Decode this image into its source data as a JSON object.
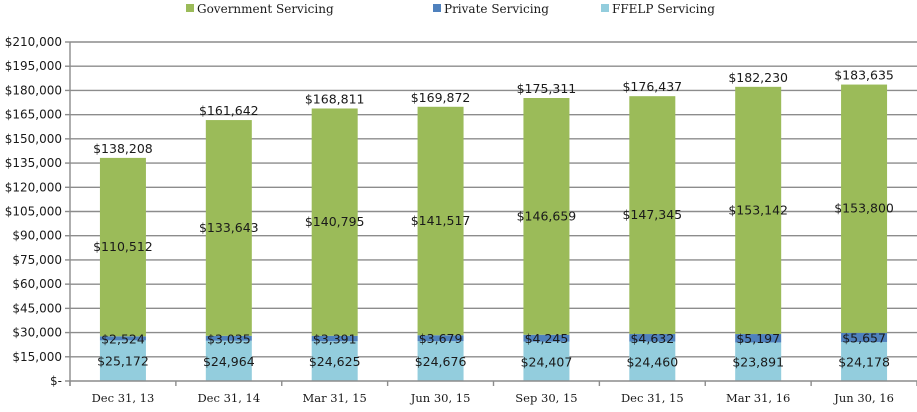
{
  "chart_data": {
    "type": "bar",
    "stacked": true,
    "title": "",
    "xlabel": "",
    "ylabel": "",
    "categories": [
      "Dec 31, 13",
      "Dec 31, 14",
      "Mar 31, 15",
      "Jun 30, 15",
      "Sep 30, 15",
      "Dec 31, 15",
      "Mar 31, 16",
      "Jun 30, 16"
    ],
    "series": [
      {
        "name": "FFELP Servicing",
        "color": "#93cddd",
        "values": [
          25172,
          24964,
          24625,
          24676,
          24407,
          24460,
          23891,
          24178
        ],
        "labels": [
          "$25,172",
          "$24,964",
          "$24,625",
          "$24,676",
          "$24,407",
          "$24,460",
          "$23,891",
          "$24,178"
        ]
      },
      {
        "name": "Private Servicing",
        "color": "#4f81bd",
        "values": [
          2524,
          3035,
          3391,
          3679,
          4245,
          4632,
          5197,
          5657
        ],
        "labels": [
          "$2,524",
          "$3,035",
          "$3,391",
          "$3,679",
          "$4,245",
          "$4,632",
          "$5,197",
          "$5,657"
        ]
      },
      {
        "name": "Government Servicing",
        "color": "#9bbb59",
        "values": [
          110512,
          133643,
          140795,
          141517,
          146659,
          147345,
          153142,
          153800
        ],
        "labels": [
          "$110,512",
          "$133,643",
          "$140,795",
          "$141,517",
          "$146,659",
          "$147,345",
          "$153,142",
          "$153,800"
        ]
      }
    ],
    "totals": [
      138208,
      161642,
      168811,
      169872,
      175311,
      176437,
      182230,
      183635
    ],
    "total_labels": [
      "$138,208",
      "$161,642",
      "$168,811",
      "$169,872",
      "$175,311",
      "$176,437",
      "$182,230",
      "$183,635"
    ],
    "legend": {
      "position": "top",
      "entries": [
        {
          "label": "Government Servicing",
          "color": "#9bbb59"
        },
        {
          "label": "Private Servicing",
          "color": "#4f81bd"
        },
        {
          "label": "FFELP Servicing",
          "color": "#93cddd"
        }
      ]
    },
    "ylim": [
      0,
      210000
    ],
    "ytick_step": 15000,
    "ytick_labels": [
      "$-",
      "$15,000",
      "$30,000",
      "$45,000",
      "$60,000",
      "$75,000",
      "$90,000",
      "$105,000",
      "$120,000",
      "$135,000",
      "$150,000",
      "$165,000",
      "$180,000",
      "$195,000",
      "$210,000"
    ],
    "grid": true,
    "gridline_color": "#8c8c8c"
  }
}
